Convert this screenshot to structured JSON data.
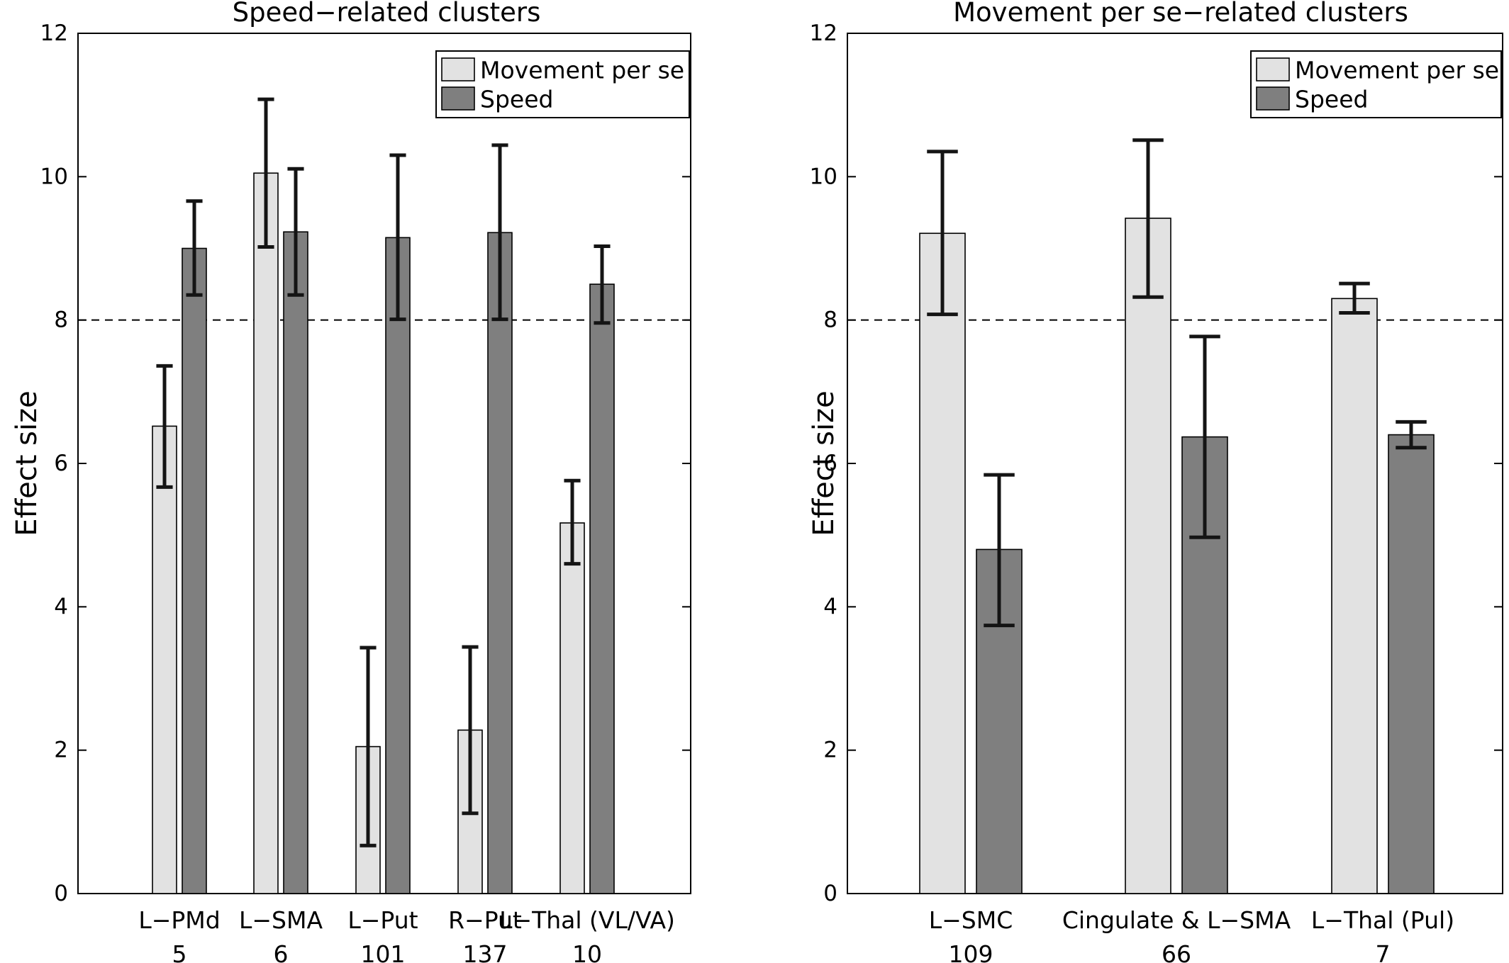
{
  "chart_data": [
    {
      "type": "bar",
      "title": "Speed−related clusters",
      "ylabel": "Effect size",
      "xlabel": "",
      "ylim": [
        0,
        12
      ],
      "yticks": [
        0,
        2,
        4,
        6,
        8,
        10,
        12
      ],
      "reference_line": 8,
      "grid": false,
      "legend_position": "top-right",
      "categories": [
        {
          "name": "L−PMd",
          "count": "5"
        },
        {
          "name": "L−SMA",
          "count": "6"
        },
        {
          "name": "L−Put",
          "count": "101"
        },
        {
          "name": "R−Put",
          "count": "137"
        },
        {
          "name": "L−Thal (VL/VA)",
          "count": "10"
        }
      ],
      "series": [
        {
          "name": "Movement per se",
          "color": "#e2e2e2",
          "values": [
            6.52,
            10.05,
            2.05,
            2.28,
            5.17
          ],
          "error_low": [
            5.67,
            9.02,
            0.67,
            1.12,
            4.6
          ],
          "error_high": [
            7.36,
            11.08,
            3.43,
            3.44,
            5.76
          ]
        },
        {
          "name": "Speed",
          "color": "#7f7f7f",
          "values": [
            9.0,
            9.23,
            9.15,
            9.22,
            8.5
          ],
          "error_low": [
            8.35,
            8.35,
            8.01,
            8.01,
            7.96
          ],
          "error_high": [
            9.66,
            10.11,
            10.3,
            10.44,
            9.03
          ]
        }
      ]
    },
    {
      "type": "bar",
      "title": "Movement per se−related clusters",
      "ylabel": "Effect size",
      "xlabel": "",
      "ylim": [
        0,
        12
      ],
      "yticks": [
        0,
        2,
        4,
        6,
        8,
        10,
        12
      ],
      "reference_line": 8,
      "grid": false,
      "legend_position": "top-right",
      "categories": [
        {
          "name": "L−SMC",
          "count": "109"
        },
        {
          "name": "Cingulate & L−SMA",
          "count": "66"
        },
        {
          "name": "L−Thal (Pul)",
          "count": "7"
        }
      ],
      "series": [
        {
          "name": "Movement per se",
          "color": "#e2e2e2",
          "values": [
            9.21,
            9.42,
            8.3
          ],
          "error_low": [
            8.08,
            8.32,
            8.1
          ],
          "error_high": [
            10.35,
            10.51,
            8.51
          ]
        },
        {
          "name": "Speed",
          "color": "#7f7f7f",
          "values": [
            4.8,
            6.37,
            6.4
          ],
          "error_low": [
            3.74,
            4.97,
            6.22
          ],
          "error_high": [
            5.84,
            7.77,
            6.58
          ]
        }
      ]
    }
  ]
}
